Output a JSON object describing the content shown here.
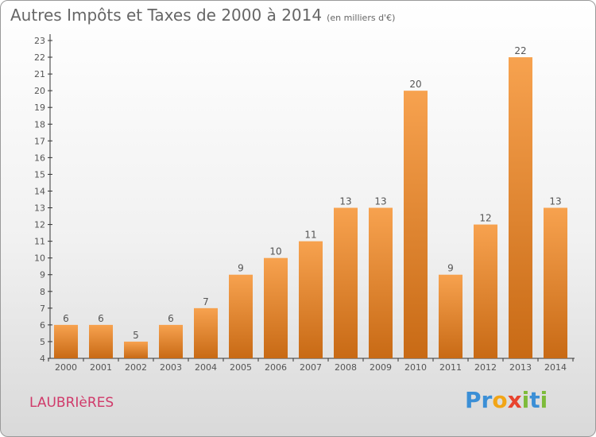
{
  "title": "Autres Impôts et Taxes de 2000 à 2014",
  "subtitle": "(en milliers d'€)",
  "commune": "LAUBRIèRES",
  "logo": {
    "letters": [
      {
        "ch": "P",
        "color": "#3b8fd6"
      },
      {
        "ch": "r",
        "color": "#3b8fd6"
      },
      {
        "ch": "o",
        "color": "#f2a516"
      },
      {
        "ch": "x",
        "color": "#e8432e"
      },
      {
        "ch": "i",
        "color": "#7dbb3a"
      },
      {
        "ch": "t",
        "color": "#3b8fd6"
      },
      {
        "ch": "i",
        "color": "#7dbb3a"
      }
    ]
  },
  "colors": {
    "bar_top": "#f7a24f",
    "bar_bottom": "#c86a15",
    "axis": "#333333",
    "label": "#555555"
  },
  "chart_data": {
    "type": "bar",
    "categories": [
      "2000",
      "2001",
      "2002",
      "2003",
      "2004",
      "2005",
      "2006",
      "2007",
      "2008",
      "2009",
      "2010",
      "2011",
      "2012",
      "2013",
      "2014"
    ],
    "values": [
      6,
      6,
      5,
      6,
      7,
      9,
      10,
      11,
      13,
      13,
      20,
      9,
      12,
      22,
      13
    ],
    "title": "Autres Impôts et Taxes de 2000 à 2014",
    "subtitle": "(en milliers d'€)",
    "ylim": [
      4,
      23
    ],
    "yticks": [
      4,
      5,
      6,
      7,
      8,
      9,
      10,
      11,
      12,
      13,
      14,
      15,
      16,
      17,
      18,
      19,
      20,
      21,
      22,
      23
    ],
    "grid": false,
    "legend": "none"
  }
}
